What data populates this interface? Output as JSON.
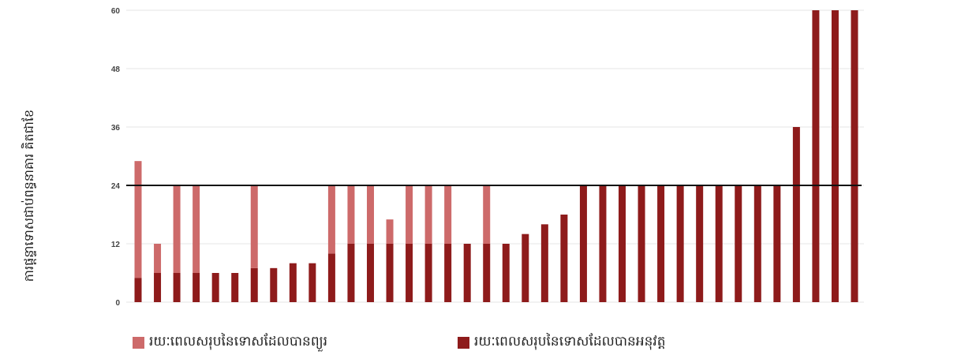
{
  "chart_data": {
    "type": "bar",
    "ylabel": "ការផ្តន្ទាទោសជាប់ពន្ធនាគារ គិតជាខែ",
    "yticks": [
      0,
      12,
      24,
      36,
      48,
      60
    ],
    "ylim": [
      0,
      60
    ],
    "reference_line": 24,
    "grid": true,
    "series": [
      {
        "name": "រយៈពេលសរុបនៃទោសដែលបានព្យួរ",
        "color": "#cd6a6a",
        "values": [
          24,
          6,
          18,
          18,
          0,
          0,
          17,
          0,
          0,
          0,
          14,
          12,
          12,
          5,
          12,
          12,
          12,
          0,
          12,
          0,
          0,
          0,
          0,
          0,
          0,
          0,
          0,
          0,
          0,
          0,
          0,
          0,
          0,
          0,
          0,
          0,
          0,
          0
        ]
      },
      {
        "name": "រយៈពេលសរុបនៃទោសដែលបានអនុវត្ត",
        "color": "#8e1b1b",
        "values": [
          5,
          6,
          6,
          6,
          6,
          6,
          7,
          7,
          8,
          8,
          10,
          12,
          12,
          12,
          12,
          12,
          12,
          12,
          12,
          12,
          14,
          16,
          18,
          24,
          24,
          24,
          24,
          24,
          24,
          24,
          24,
          24,
          24,
          24,
          36,
          60,
          60,
          60
        ]
      }
    ]
  }
}
